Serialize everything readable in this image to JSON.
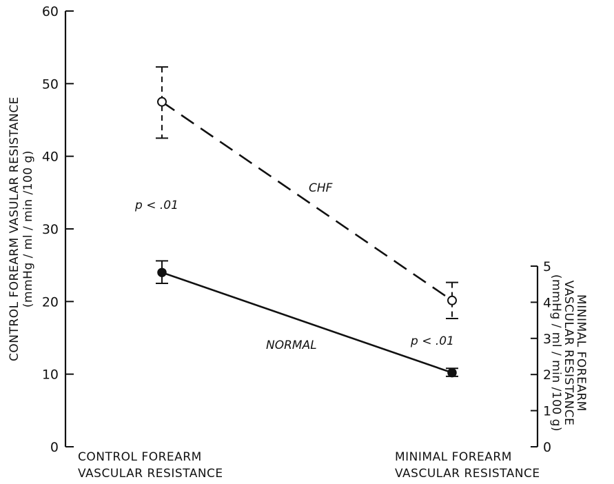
{
  "chart_data": {
    "type": "line",
    "categories": [
      "CONTROL FOREARM VASCULAR RESISTANCE",
      "MINIMAL FOREARM VASCULAR RESISTANCE"
    ],
    "category_lines": [
      [
        "CONTROL   FOREARM",
        "VASCULAR  RESISTANCE"
      ],
      [
        "MINIMAL   FOREARM",
        "VASCULAR  RESISTANCE"
      ]
    ],
    "left_axis": {
      "label_lines": [
        "CONTROL  FOREARM  VASULAR  RESISTANCE",
        "(mmHg / ml / min /100 g)"
      ],
      "ylim": [
        0,
        60
      ],
      "ticks": [
        0,
        10,
        20,
        30,
        40,
        50,
        60
      ],
      "tick_labels": [
        "0",
        "10",
        "20",
        "30",
        "40",
        "50",
        "60"
      ]
    },
    "right_axis": {
      "label_lines": [
        "MINIMAL   FOREARM",
        "VASCULAR  RESISTANCE",
        "(mmHg / ml / min /100 g)"
      ],
      "ylim": [
        0,
        5
      ],
      "ticks": [
        0,
        1,
        2,
        3,
        4,
        5
      ],
      "tick_labels": [
        "0",
        "1",
        "2",
        "3",
        "4",
        "5"
      ]
    },
    "series": [
      {
        "name": "CHF",
        "line_style": "dashed",
        "marker": "open-circle",
        "control": {
          "value": 47.5,
          "err_low": 42.5,
          "err_high": 52.3
        },
        "minimal": {
          "value": 4.05,
          "err_low": 3.55,
          "err_high": 4.55
        }
      },
      {
        "name": "NORMAL",
        "line_style": "solid",
        "marker": "filled-circle",
        "control": {
          "value": 24.0,
          "err_low": 22.5,
          "err_high": 25.6
        },
        "minimal": {
          "value": 2.05,
          "err_low": 1.95,
          "err_high": 2.17
        }
      }
    ],
    "annotations": [
      {
        "id": "p-control",
        "text": "p < .01"
      },
      {
        "id": "p-minimal",
        "text": "p < .01"
      }
    ],
    "grid": false
  }
}
